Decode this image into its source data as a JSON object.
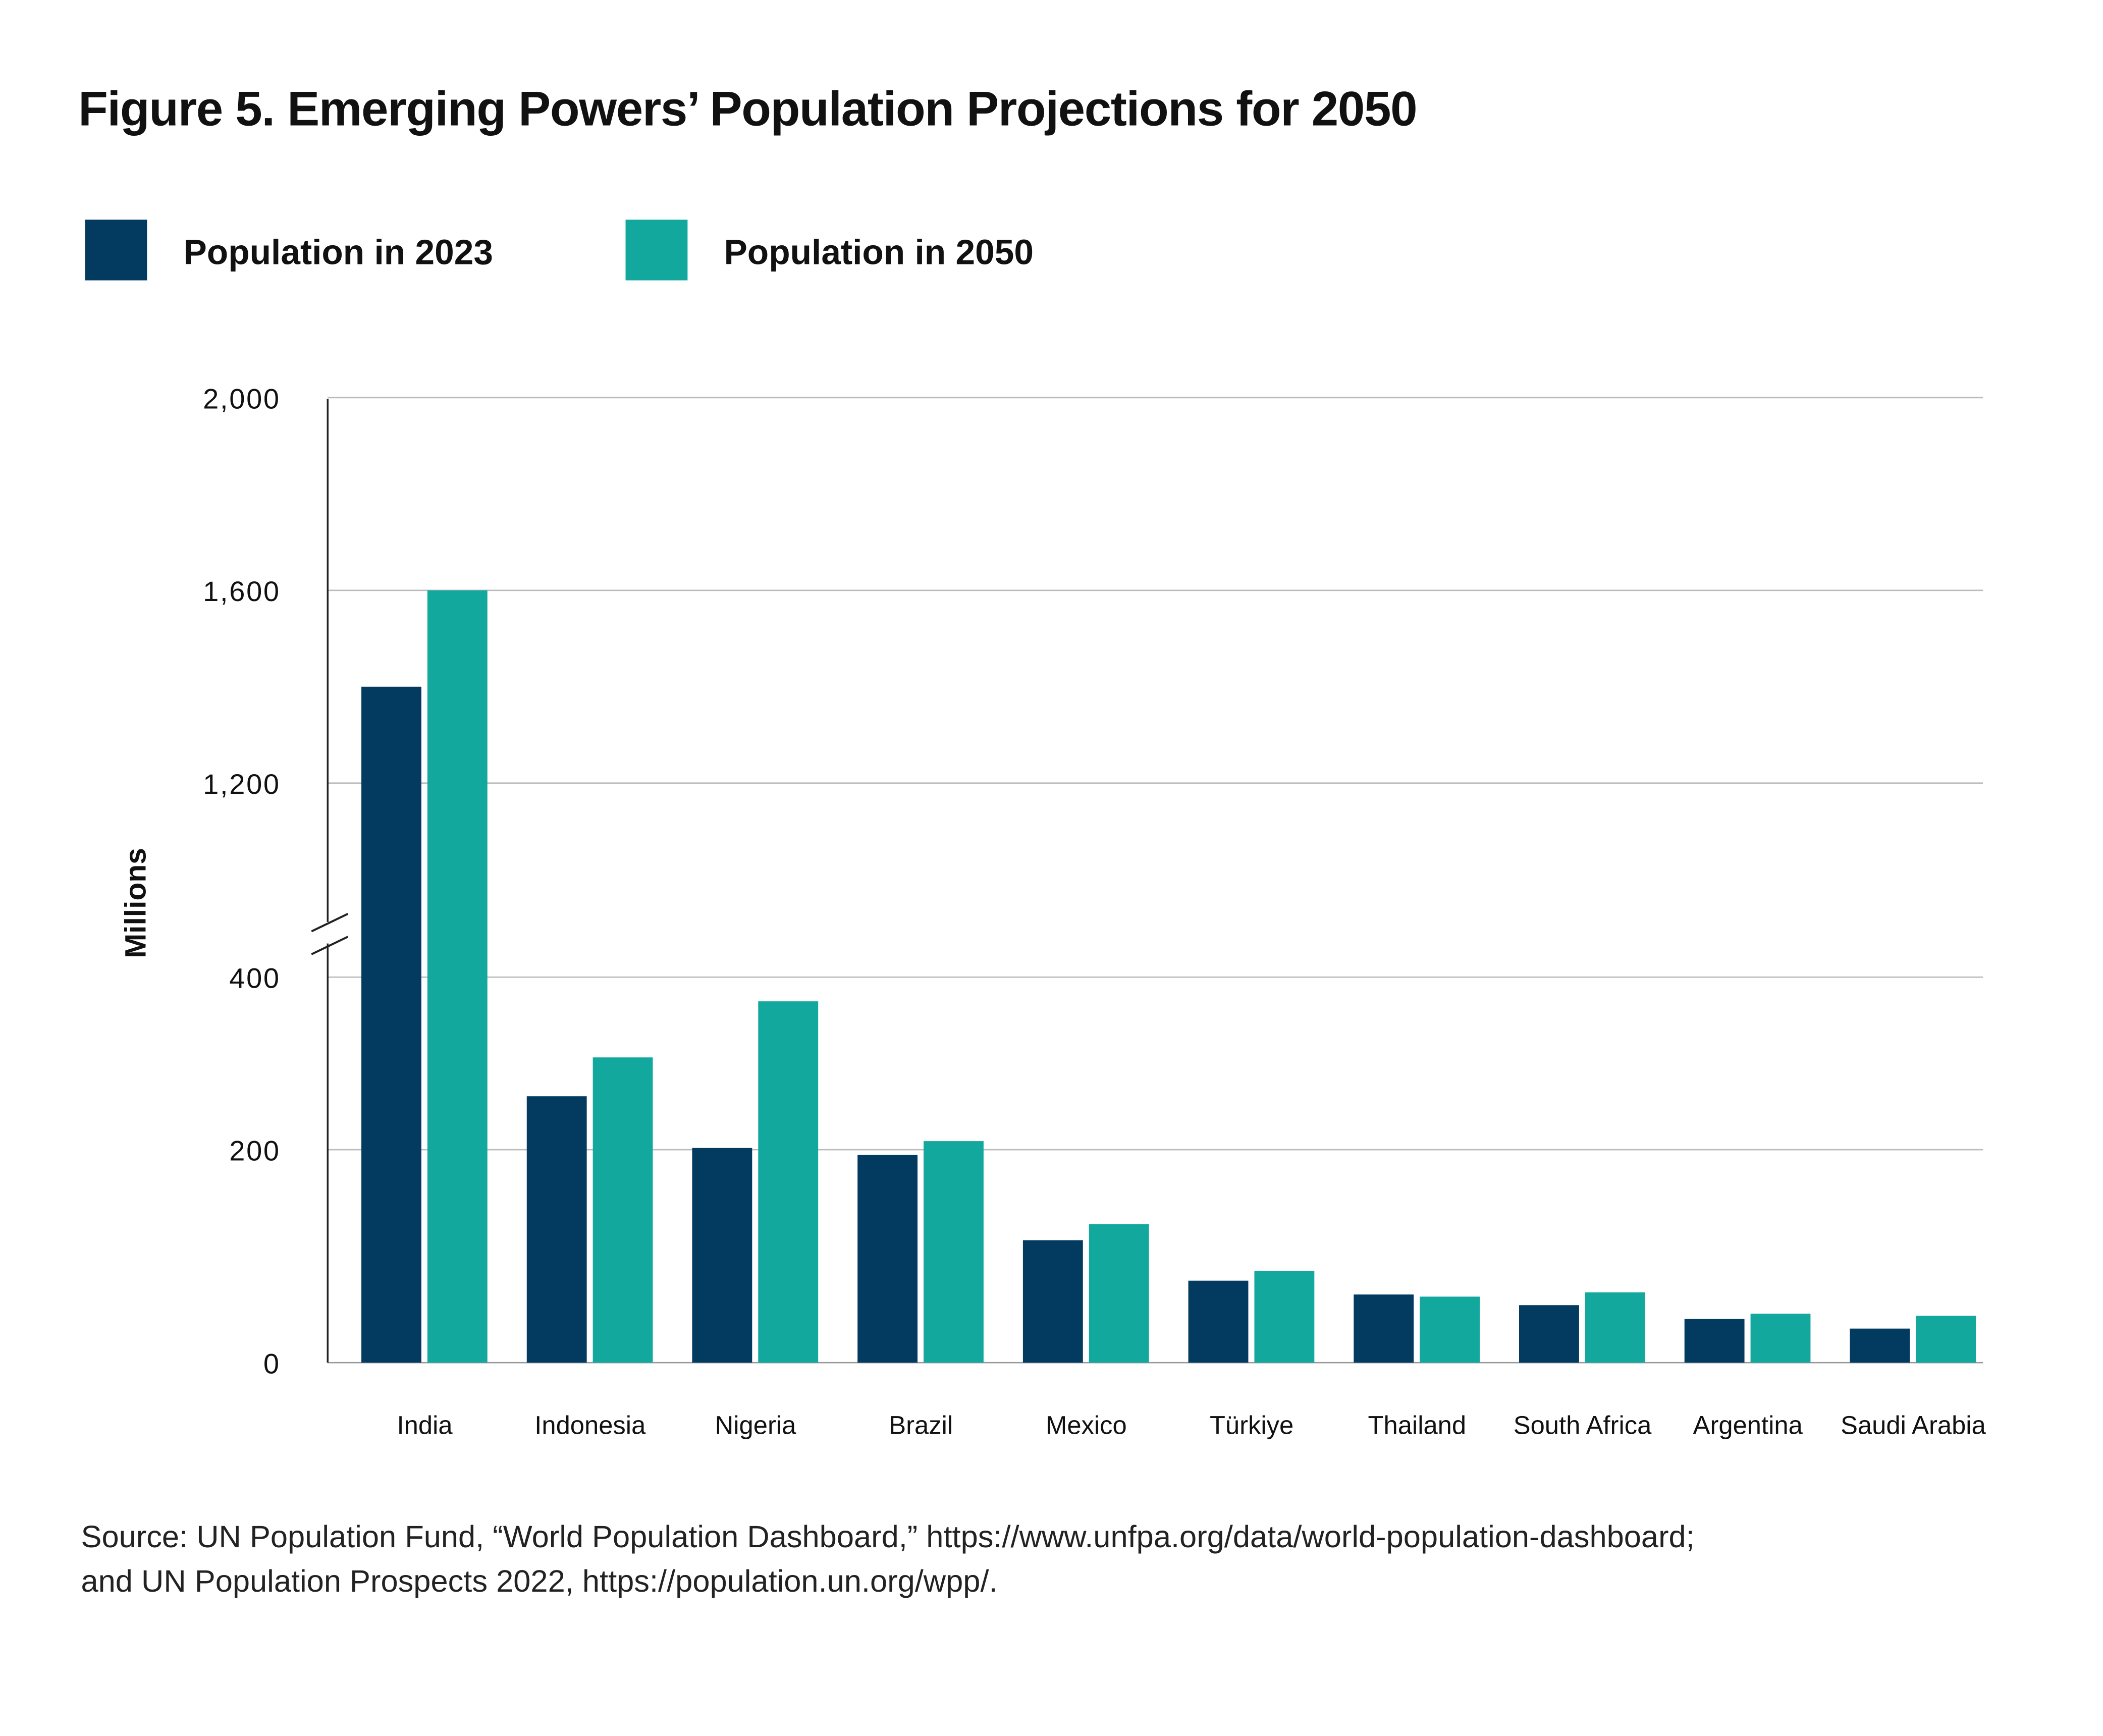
{
  "chart_data": {
    "type": "bar",
    "title": "Figure 5. Emerging Powers’ Population Projections for 2050",
    "ylabel": "Millions",
    "xlabel": "",
    "categories": [
      "India",
      "Indonesia",
      "Nigeria",
      "Brazil",
      "Mexico",
      "Türkiye",
      "Thailand",
      "South Africa",
      "Argentina",
      "Saudi Arabia"
    ],
    "series": [
      {
        "name": "Population in 2023",
        "color": "#033a60",
        "values": [
          1400,
          262,
          202,
          195,
          115,
          77,
          64,
          54,
          41,
          32
        ]
      },
      {
        "name": "Population in 2050",
        "color": "#13a89e",
        "values": [
          1600,
          307,
          372,
          210,
          130,
          86,
          62,
          66,
          46,
          44
        ]
      }
    ],
    "y_ticks": [
      "0",
      "200",
      "400",
      "1,200",
      "1,600",
      "2,000"
    ],
    "y_tick_values": [
      0,
      200,
      400,
      1200,
      1600,
      2000
    ],
    "ylim": [
      0,
      2000
    ],
    "axis_break": [
      400,
      1200
    ],
    "grid": true,
    "legend_position": "top-left",
    "source_lines": [
      "Source: UN Population Fund, “World Population Dashboard,” https://www.unfpa.org/data/world-population-dashboard;",
      "and UN Population Prospects 2022,  https://population.un.org/wpp/."
    ]
  }
}
